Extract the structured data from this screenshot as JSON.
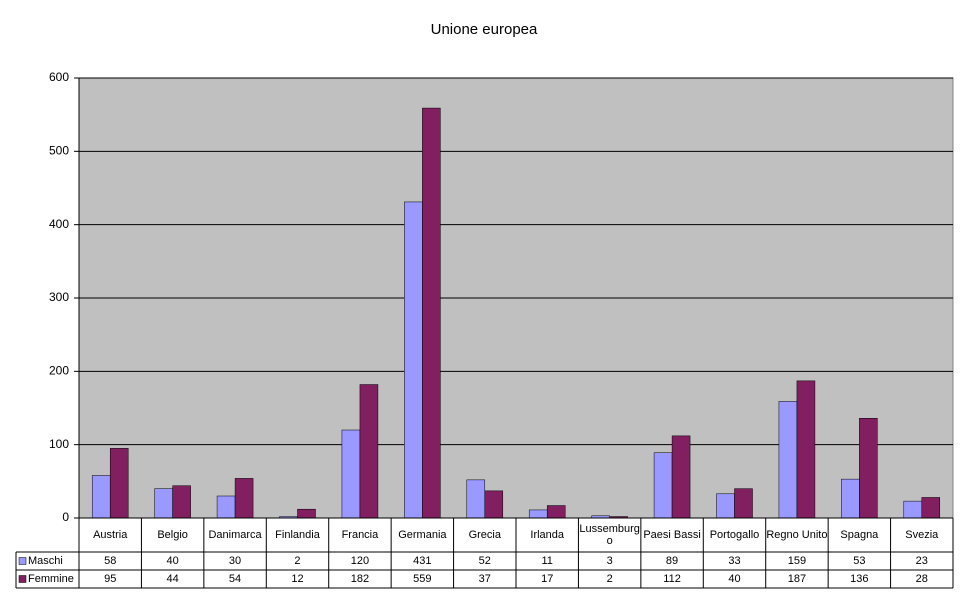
{
  "chart_data": {
    "type": "bar",
    "title": "Unione europea",
    "categories": [
      "Austria",
      "Belgio",
      "Danimarca",
      "Finlandia",
      "Francia",
      "Germania",
      "Grecia",
      "Irlanda",
      "Lussemburgo",
      "Paesi Bassi",
      "Portogallo",
      "Regno Unito",
      "Spagna",
      "Svezia"
    ],
    "series": [
      {
        "name": "Maschi",
        "color": "#9999ff",
        "values": [
          58,
          40,
          30,
          2,
          120,
          431,
          52,
          11,
          3,
          89,
          33,
          159,
          53,
          23
        ]
      },
      {
        "name": "Femmine",
        "color": "#821f60",
        "values": [
          95,
          44,
          54,
          12,
          182,
          559,
          37,
          17,
          2,
          112,
          40,
          187,
          136,
          28
        ]
      }
    ],
    "ylim": [
      0,
      600
    ],
    "yticks": [
      0,
      100,
      200,
      300,
      400,
      500,
      600
    ],
    "grid": true,
    "plot_background": "#c0c0c0"
  }
}
